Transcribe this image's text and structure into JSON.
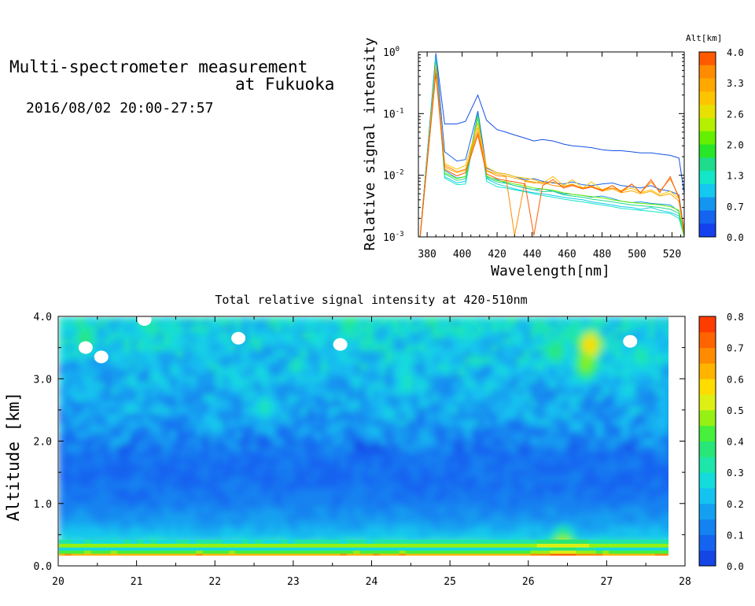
{
  "header": {
    "title_line1": "Multi-spectrometer measurement",
    "title_line2": "at Fukuoka",
    "datetime": "2016/08/02 20:00-27:57"
  },
  "chart_data": [
    {
      "type": "line",
      "xlabel": "Wavelength[nm]",
      "ylabel": "Relative signal intensity",
      "yscale": "log",
      "xlim": [
        375,
        527
      ],
      "ylim": [
        0.001,
        1
      ],
      "x_ticks": [
        380,
        400,
        420,
        440,
        460,
        480,
        500,
        520
      ],
      "y_ticks": [
        {
          "value": 1,
          "base": "10",
          "exp": "0"
        },
        {
          "value": 0.1,
          "base": "10",
          "exp": "-1"
        },
        {
          "value": 0.01,
          "base": "10",
          "exp": "-2"
        },
        {
          "value": 0.001,
          "base": "10",
          "exp": "-3"
        }
      ],
      "colorbar": {
        "title": "Alt[km]",
        "ticks": [
          "4.0",
          "3.3",
          "2.6",
          "2.0",
          "1.3",
          "0.7",
          "0.0"
        ],
        "colors": [
          "#ff5a00",
          "#ff8c00",
          "#ffa800",
          "#ffc400",
          "#e8e000",
          "#b4f000",
          "#64f000",
          "#28e628",
          "#1edc8c",
          "#14e6c8",
          "#14c8f0",
          "#1496f0",
          "#1464f0",
          "#1440f0"
        ]
      },
      "x": [
        376,
        385,
        390,
        397,
        402,
        409,
        414,
        420,
        425,
        430,
        436,
        441,
        446,
        452,
        458,
        463,
        469,
        474,
        480,
        486,
        491,
        497,
        502,
        508,
        513,
        519,
        524,
        527
      ],
      "series": [
        {
          "alt": 0.1,
          "color": "#1450e6",
          "values": [
            0.001,
            0.95,
            0.068,
            0.068,
            0.075,
            0.2,
            0.078,
            0.055,
            0.05,
            0.045,
            0.04,
            0.036,
            0.038,
            0.036,
            0.032,
            0.03,
            0.029,
            0.028,
            0.026,
            0.025,
            0.025,
            0.024,
            0.023,
            0.023,
            0.022,
            0.021,
            0.019,
            0.005
          ]
        },
        {
          "alt": 0.2,
          "color": "#1464f0",
          "values": [
            0.001,
            0.9,
            0.024,
            0.017,
            0.018,
            0.11,
            0.013,
            0.011,
            0.0105,
            0.0095,
            0.0085,
            0.0088,
            0.008,
            0.0075,
            0.0072,
            0.0078,
            0.007,
            0.0068,
            0.0072,
            0.0075,
            0.0068,
            0.0065,
            0.0062,
            0.0068,
            0.0059,
            0.0055,
            0.0048,
            0.0012
          ]
        },
        {
          "alt": 0.5,
          "color": "#1496f0",
          "values": [
            0.001,
            0.85,
            0.012,
            0.009,
            0.0095,
            0.1,
            0.0095,
            0.0085,
            0.0075,
            0.0068,
            0.0062,
            0.0058,
            0.006,
            0.0055,
            0.005,
            0.0049,
            0.0047,
            0.0044,
            0.0046,
            0.0042,
            0.0038,
            0.0036,
            0.0037,
            0.0035,
            0.0034,
            0.0033,
            0.0026,
            0.0011
          ]
        },
        {
          "alt": 0.9,
          "color": "#14c8f0",
          "values": [
            0.001,
            0.8,
            0.0095,
            0.0075,
            0.008,
            0.09,
            0.0088,
            0.0072,
            0.0066,
            0.006,
            0.0055,
            0.0052,
            0.005,
            0.0047,
            0.0044,
            0.0042,
            0.004,
            0.0037,
            0.0035,
            0.0033,
            0.0031,
            0.003,
            0.0028,
            0.003,
            0.0027,
            0.0025,
            0.0022,
            0.001
          ]
        },
        {
          "alt": 1.3,
          "color": "#14e6c8",
          "values": [
            0.001,
            0.75,
            0.009,
            0.007,
            0.0072,
            0.085,
            0.008,
            0.0065,
            0.0062,
            0.0058,
            0.0054,
            0.005,
            0.0047,
            0.0044,
            0.0041,
            0.0039,
            0.0037,
            0.0035,
            0.0033,
            0.0031,
            0.0029,
            0.0028,
            0.0027,
            0.0026,
            0.0025,
            0.0024,
            0.002,
            0.001
          ]
        },
        {
          "alt": 1.7,
          "color": "#1edc8c",
          "values": [
            0.001,
            0.7,
            0.0105,
            0.0082,
            0.0088,
            0.095,
            0.0092,
            0.0078,
            0.0074,
            0.0068,
            0.0063,
            0.0058,
            0.0054,
            0.0055,
            0.0048,
            0.0046,
            0.0044,
            0.0041,
            0.0039,
            0.0037,
            0.0035,
            0.0033,
            0.0032,
            0.0031,
            0.003,
            0.0028,
            0.0024,
            0.001
          ]
        },
        {
          "alt": 2.3,
          "color": "#64f000",
          "values": [
            0.001,
            0.65,
            0.011,
            0.0088,
            0.0095,
            0.088,
            0.0098,
            0.0082,
            0.0078,
            0.0072,
            0.0067,
            0.0062,
            0.006,
            0.0057,
            0.0052,
            0.0049,
            0.0047,
            0.0045,
            0.0043,
            0.004,
            0.0038,
            0.0036,
            0.0035,
            0.0034,
            0.0033,
            0.0031,
            0.0027,
            0.001
          ]
        },
        {
          "alt": 2.9,
          "color": "#ffc400",
          "values": [
            0.001,
            0.6,
            0.0155,
            0.0125,
            0.0145,
            0.07,
            0.0135,
            0.011,
            0.0105,
            0.0095,
            0.009,
            0.0085,
            0.0075,
            0.0095,
            0.0068,
            0.0085,
            0.0062,
            0.0078,
            0.0058,
            0.0068,
            0.0055,
            0.0062,
            0.0052,
            0.0058,
            0.0048,
            0.0055,
            0.0042,
            0.0012
          ]
        },
        {
          "alt": 3.3,
          "color": "#ffa800",
          "values": [
            0.001,
            0.55,
            0.0135,
            0.011,
            0.012,
            0.06,
            0.012,
            0.0105,
            0.0098,
            0.009,
            0.0082,
            0.0078,
            0.0072,
            0.0078,
            0.0066,
            0.0072,
            0.006,
            0.0068,
            0.0055,
            0.006,
            0.0052,
            0.0056,
            0.005,
            0.0055,
            0.0046,
            0.005,
            0.0038,
            0.0011
          ]
        },
        {
          "alt": 3.6,
          "color": "#ff8c00",
          "values": [
            0.001,
            0.5,
            0.0145,
            0.0115,
            0.0125,
            0.05,
            0.0118,
            0.0098,
            0.0095,
            0.00105,
            0.008,
            0.0075,
            0.0078,
            0.0068,
            0.0065,
            0.007,
            0.0062,
            0.0066,
            0.0058,
            0.0062,
            0.0056,
            0.0072,
            0.0052,
            0.0078,
            0.0055,
            0.0088,
            0.0045,
            0.0011
          ]
        },
        {
          "alt": 4.0,
          "color": "#ff5a00",
          "values": [
            0.001,
            0.45,
            0.0125,
            0.0098,
            0.011,
            0.045,
            0.0105,
            0.0088,
            0.0082,
            0.0078,
            0.0072,
            0.00105,
            0.0068,
            0.0085,
            0.0062,
            0.0068,
            0.006,
            0.0064,
            0.0056,
            0.0068,
            0.0053,
            0.0072,
            0.0052,
            0.0085,
            0.0052,
            0.0095,
            0.0042,
            0.0011
          ]
        }
      ]
    },
    {
      "type": "heatmap",
      "title": "Total relative signal intensity at 420-510nm",
      "ylabel": "Altitude [km]",
      "xlim": [
        20,
        28
      ],
      "ylim": [
        0,
        4
      ],
      "x_ticks": [
        "20",
        "21",
        "22",
        "23",
        "24",
        "25",
        "26",
        "27",
        "28"
      ],
      "y_ticks": [
        "0.0",
        "1.0",
        "2.0",
        "3.0",
        "4.0"
      ],
      "data_time_range": [
        20.0,
        27.95
      ],
      "data_alt_range": [
        0.15,
        4.0
      ],
      "colorbar": {
        "range": [
          0,
          0.8
        ],
        "ticks": [
          "0.0",
          "0.1",
          "0.2",
          "0.3",
          "0.4",
          "0.5",
          "0.6",
          "0.7",
          "0.8"
        ],
        "colors": [
          "#1446e6",
          "#1464f0",
          "#1482f0",
          "#14a0f0",
          "#14c3f0",
          "#14dcdc",
          "#1ee6aa",
          "#28e678",
          "#46f03c",
          "#96f014",
          "#dcf014",
          "#ffdc00",
          "#ffb400",
          "#ff8c00",
          "#ff6400",
          "#ff3c00"
        ]
      },
      "profile": {
        "altitude_km": [
          0.15,
          0.2,
          0.25,
          0.3,
          0.35,
          0.4,
          0.5,
          0.6,
          0.8,
          1.0,
          1.3,
          1.6,
          1.8,
          2.0,
          2.2,
          2.5,
          2.8,
          3.0,
          3.3,
          3.6,
          3.8,
          4.0
        ],
        "mean_intensity": [
          0.6,
          0.4,
          0.25,
          0.45,
          0.3,
          0.25,
          0.22,
          0.18,
          0.14,
          0.11,
          0.09,
          0.09,
          0.1,
          0.13,
          0.16,
          0.18,
          0.2,
          0.21,
          0.23,
          0.25,
          0.26,
          0.3
        ]
      },
      "hotspots": [
        {
          "time": 26.75,
          "alt": 3.5,
          "value": 0.62
        },
        {
          "time": 26.7,
          "alt": 3.2,
          "value": 0.5
        },
        {
          "time": 20.3,
          "alt": 3.6,
          "value": 0.4
        },
        {
          "time": 21.1,
          "alt": 3.8,
          "value": 0.35
        },
        {
          "time": 23.7,
          "alt": 3.9,
          "value": 0.38
        },
        {
          "time": 22.6,
          "alt": 2.5,
          "value": 0.32
        },
        {
          "time": 24.4,
          "alt": 2.9,
          "value": 0.32
        },
        {
          "time": 26.3,
          "alt": 3.4,
          "value": 0.4
        },
        {
          "time": 27.4,
          "alt": 3.3,
          "value": 0.36
        },
        {
          "time": 26.4,
          "alt": 0.3,
          "value": 0.55
        }
      ],
      "missing_regions": [
        {
          "time": 20.35,
          "alt": 3.5
        },
        {
          "time": 20.55,
          "alt": 3.35
        },
        {
          "time": 21.1,
          "alt": 3.95
        },
        {
          "time": 23.6,
          "alt": 3.55
        },
        {
          "time": 27.3,
          "alt": 3.6
        },
        {
          "time": 22.3,
          "alt": 3.65
        }
      ]
    }
  ]
}
